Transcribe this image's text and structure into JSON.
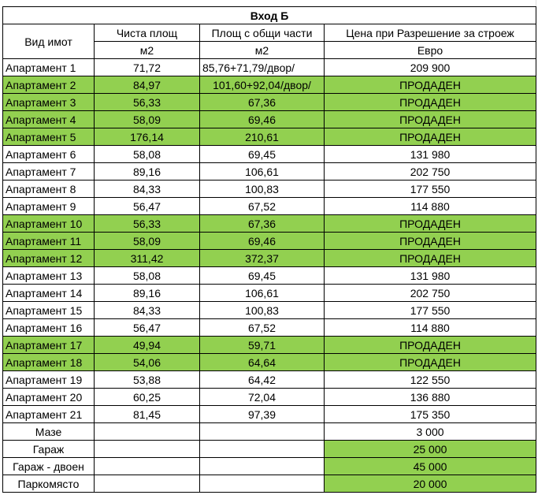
{
  "table": {
    "title": "Вход Б",
    "columns": [
      {
        "label": "Вид имот"
      },
      {
        "label": "Чиста площ",
        "unit": "м2"
      },
      {
        "label": "Площ с общи части",
        "unit": "м2"
      },
      {
        "label": "Цена при Разрешение за строеж",
        "unit": "Евро"
      }
    ],
    "rows": [
      {
        "cells": [
          "Апартамент 1",
          "71,72",
          "85,76+71,79/двор/",
          "209 900"
        ]
      },
      {
        "cells": [
          "Апартамент 2",
          "84,97",
          "101,60+92,04/двор/",
          "ПРОДАДЕН"
        ],
        "highlight": "row"
      },
      {
        "cells": [
          "Апартамент 3",
          "56,33",
          "67,36",
          "ПРОДАДЕН"
        ],
        "highlight": "row"
      },
      {
        "cells": [
          "Апартамент 4",
          "58,09",
          "69,46",
          "ПРОДАДЕН"
        ],
        "highlight": "row"
      },
      {
        "cells": [
          "Апартамент 5",
          "176,14",
          "210,61",
          "ПРОДАДЕН"
        ],
        "highlight": "row"
      },
      {
        "cells": [
          "Апартамент 6",
          "58,08",
          "69,45",
          "131 980"
        ]
      },
      {
        "cells": [
          "Апартамент 7",
          "89,16",
          "106,61",
          "202 750"
        ]
      },
      {
        "cells": [
          "Апартамент 8",
          "84,33",
          "100,83",
          "177 550"
        ]
      },
      {
        "cells": [
          "Апартамент 9",
          "56,47",
          "67,52",
          "114 880"
        ]
      },
      {
        "cells": [
          "Апартамент 10",
          "56,33",
          "67,36",
          "ПРОДАДЕН"
        ],
        "highlight": "row"
      },
      {
        "cells": [
          "Апартамент 11",
          "58,09",
          "69,46",
          "ПРОДАДЕН"
        ],
        "highlight": "row"
      },
      {
        "cells": [
          "Апартамент 12",
          "311,42",
          "372,37",
          "ПРОДАДЕН"
        ],
        "highlight": "row"
      },
      {
        "cells": [
          "Апартамент 13",
          "58,08",
          "69,45",
          "131 980"
        ]
      },
      {
        "cells": [
          "Апартамент 14",
          "89,16",
          "106,61",
          "202 750"
        ]
      },
      {
        "cells": [
          "Апартамент 15",
          "84,33",
          "100,83",
          "177 550"
        ]
      },
      {
        "cells": [
          "Апартамент 16",
          "56,47",
          "67,52",
          "114 880"
        ]
      },
      {
        "cells": [
          "Апартамент 17",
          "49,94",
          "59,71",
          "ПРОДАДЕН"
        ],
        "highlight": "row"
      },
      {
        "cells": [
          "Апартамент 18",
          "54,06",
          "64,64",
          "ПРОДАДЕН"
        ],
        "highlight": "row"
      },
      {
        "cells": [
          "Апартамент 19",
          "53,88",
          "64,42",
          "122 550"
        ]
      },
      {
        "cells": [
          "Апартамент 20",
          "60,25",
          "72,04",
          "136 880"
        ]
      },
      {
        "cells": [
          "Апартамент 21",
          "81,45",
          "97,39",
          "175 350"
        ]
      },
      {
        "cells": [
          "Мазе",
          "",
          "",
          "3 000"
        ]
      },
      {
        "cells": [
          "Гараж",
          "",
          "",
          "25 000"
        ],
        "highlight": "price"
      },
      {
        "cells": [
          "Гараж - двоен",
          "",
          "",
          "45 000"
        ],
        "highlight": "price"
      },
      {
        "cells": [
          "Паркомясто",
          "",
          "",
          "20 000"
        ],
        "highlight": "price"
      }
    ]
  }
}
